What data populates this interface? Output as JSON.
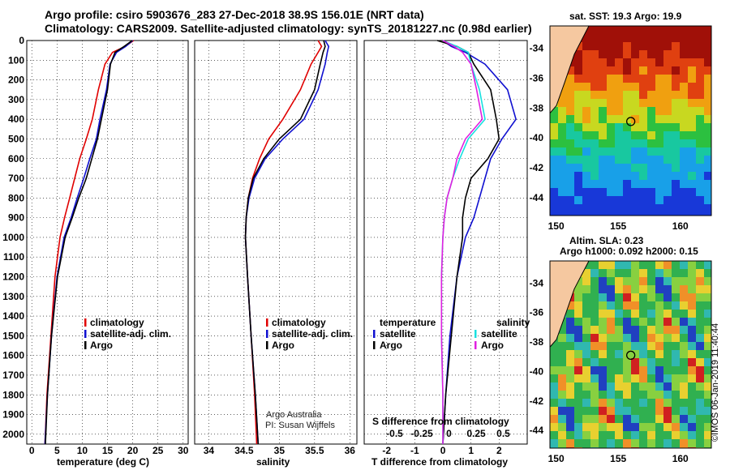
{
  "titles": {
    "line1": "Argo profile: csiro 5903676_283 27-Dec-2018 38.9S 156.01E (NRT data)",
    "line2": "Climatology: CARS2009. Satellite-adjusted climatology: synTS_20181227.nc (0.98d earlier)"
  },
  "colors": {
    "climatology": "#e00000",
    "satellite": "#1010d0",
    "argo": "#000000",
    "sal_satellite": "#18e0e0",
    "sal_argo": "#e020e0",
    "land": "#f5c8a0"
  },
  "credits": {
    "line1": "Argo Australia",
    "line2": "PI: Susan Wijffels"
  },
  "timestamp": "©IMOS 06-Jan-2019 11:40:44",
  "maps": {
    "sst_caption": "sat. SST: 19.3 Argo: 19.9",
    "sla_caption": "Altim. SLA: 0.23",
    "argo_h_caption": "Argo h1000: 0.092 h2000: 0.15",
    "lat_ticks": [
      "-34",
      "-36",
      "-38",
      "-40",
      "-42",
      "-44"
    ],
    "lon_ticks": [
      "150",
      "155",
      "160"
    ]
  },
  "chart_data": [
    {
      "type": "line",
      "xlabel": "temperature (deg C)",
      "ylabel": "",
      "xlim": [
        -1,
        31
      ],
      "ylim": [
        2050,
        0
      ],
      "xticks": [
        "0",
        "5",
        "10",
        "15",
        "20",
        "25",
        "30"
      ],
      "yticks": [
        "0",
        "100",
        "200",
        "300",
        "400",
        "500",
        "600",
        "700",
        "800",
        "900",
        "1000",
        "1100",
        "1200",
        "1300",
        "1400",
        "1500",
        "1600",
        "1700",
        "1800",
        "1900",
        "2000"
      ],
      "legend": [
        "climatology",
        "satellite-adj. clim.",
        "Argo"
      ],
      "series": [
        {
          "name": "climatology",
          "x": [
            20.2,
            18.5,
            16.0,
            14.5,
            13.2,
            12.0,
            10.8,
            9.5,
            8.5,
            7.5,
            6.5,
            5.6,
            4.6,
            3.8,
            3.0,
            2.6
          ],
          "y": [
            0,
            30,
            60,
            120,
            250,
            400,
            500,
            600,
            700,
            800,
            900,
            1000,
            1200,
            1500,
            1800,
            2050
          ]
        },
        {
          "name": "satellite-adj. clim.",
          "x": [
            20.0,
            18.6,
            16.8,
            15.5,
            14.8,
            13.5,
            12.8,
            11.5,
            10.3,
            9.0,
            7.8,
            6.4,
            5.0,
            3.9,
            3.1,
            2.6
          ],
          "y": [
            0,
            30,
            60,
            120,
            250,
            400,
            500,
            600,
            700,
            800,
            900,
            1000,
            1200,
            1500,
            1800,
            2050
          ]
        },
        {
          "name": "Argo",
          "x": [
            19.9,
            18.3,
            16.5,
            15.6,
            15.0,
            13.8,
            13.0,
            11.9,
            10.8,
            9.3,
            8.0,
            6.6,
            5.1,
            3.9,
            3.1,
            2.7
          ],
          "y": [
            0,
            30,
            60,
            120,
            250,
            400,
            500,
            600,
            700,
            800,
            900,
            1000,
            1200,
            1500,
            1800,
            2050
          ]
        }
      ]
    },
    {
      "type": "line",
      "xlabel": "salinity",
      "xlim": [
        33.8,
        36.1
      ],
      "ylim": [
        2050,
        0
      ],
      "xticks": [
        "34",
        "34.5",
        "35",
        "35.5",
        "36"
      ],
      "legend": [
        "climatology",
        "satellite-adj. clim.",
        "Argo"
      ],
      "series": [
        {
          "name": "climatology",
          "x": [
            35.55,
            35.6,
            35.55,
            35.45,
            35.3,
            35.05,
            34.85,
            34.72,
            34.62,
            34.56,
            34.53,
            34.52,
            34.55,
            34.6,
            34.65,
            34.68
          ],
          "y": [
            0,
            30,
            60,
            120,
            250,
            400,
            500,
            600,
            700,
            800,
            900,
            1000,
            1200,
            1500,
            1800,
            2050
          ]
        },
        {
          "name": "satellite-adj. clim.",
          "x": [
            35.65,
            35.7,
            35.68,
            35.65,
            35.55,
            35.35,
            35.05,
            34.8,
            34.65,
            34.57,
            34.53,
            34.52,
            34.55,
            34.6,
            34.66,
            34.7
          ],
          "y": [
            0,
            30,
            60,
            120,
            250,
            400,
            500,
            600,
            700,
            800,
            900,
            1000,
            1200,
            1500,
            1800,
            2050
          ]
        },
        {
          "name": "Argo",
          "x": [
            35.63,
            35.65,
            35.62,
            35.58,
            35.5,
            35.3,
            35.0,
            34.78,
            34.63,
            34.56,
            34.53,
            34.52,
            34.55,
            34.6,
            34.66,
            34.7
          ],
          "y": [
            0,
            30,
            60,
            120,
            250,
            400,
            500,
            600,
            700,
            800,
            900,
            1000,
            1200,
            1500,
            1800,
            2050
          ]
        }
      ]
    },
    {
      "type": "line",
      "xlabel": "T difference from climatology",
      "x2label": "S difference from climatology",
      "xlim": [
        -2.8,
        3.0
      ],
      "ylim": [
        2050,
        0
      ],
      "xticks": [
        "-2",
        "-1",
        "0",
        "1",
        "2"
      ],
      "x2ticks": [
        "-0.5",
        "-0.25",
        "0",
        "0.25",
        "0.5"
      ],
      "legend_temperature_heading": "temperature",
      "legend_salinity_heading": "salinity",
      "legend_temperature": [
        "satellite",
        "Argo"
      ],
      "legend_salinity": [
        "satellite",
        "Argo"
      ],
      "series": [
        {
          "name": "satellite",
          "x": [
            0,
            0.3,
            0.8,
            1.5,
            2.3,
            2.6,
            2.1,
            1.7,
            1.5,
            1.3,
            1.1,
            0.8,
            0.5,
            0.25,
            0.1,
            0.0
          ],
          "y": [
            0,
            30,
            60,
            120,
            250,
            400,
            500,
            600,
            700,
            800,
            900,
            1000,
            1200,
            1500,
            1800,
            2050
          ]
        },
        {
          "name": "Argo",
          "x": [
            -0.2,
            0.5,
            0.9,
            1.1,
            1.7,
            1.9,
            2.0,
            1.6,
            1.0,
            0.8,
            0.7,
            0.7,
            0.5,
            0.3,
            0.1,
            0.0
          ],
          "y": [
            0,
            30,
            60,
            120,
            250,
            400,
            500,
            600,
            700,
            800,
            900,
            1000,
            1200,
            1500,
            1800,
            2050
          ]
        },
        {
          "name": "satellite",
          "x": [
            0,
            0.5,
            0.9,
            1.0,
            1.3,
            1.5,
            0.9,
            0.6,
            0.35,
            0.15,
            0.05,
            0.0,
            -0.05,
            -0.05,
            0.0,
            0.0
          ],
          "y": [
            0,
            30,
            60,
            120,
            250,
            400,
            500,
            600,
            700,
            800,
            900,
            1000,
            1200,
            1500,
            1800,
            2050
          ]
        },
        {
          "name": "Argo",
          "x": [
            0,
            0.4,
            0.7,
            1.0,
            1.2,
            1.4,
            0.8,
            0.5,
            0.35,
            0.15,
            0.05,
            0.0,
            -0.05,
            -0.05,
            0.0,
            0.0
          ],
          "y": [
            0,
            30,
            60,
            120,
            250,
            400,
            500,
            600,
            700,
            800,
            900,
            1000,
            1200,
            1500,
            1800,
            2050
          ]
        }
      ]
    }
  ]
}
